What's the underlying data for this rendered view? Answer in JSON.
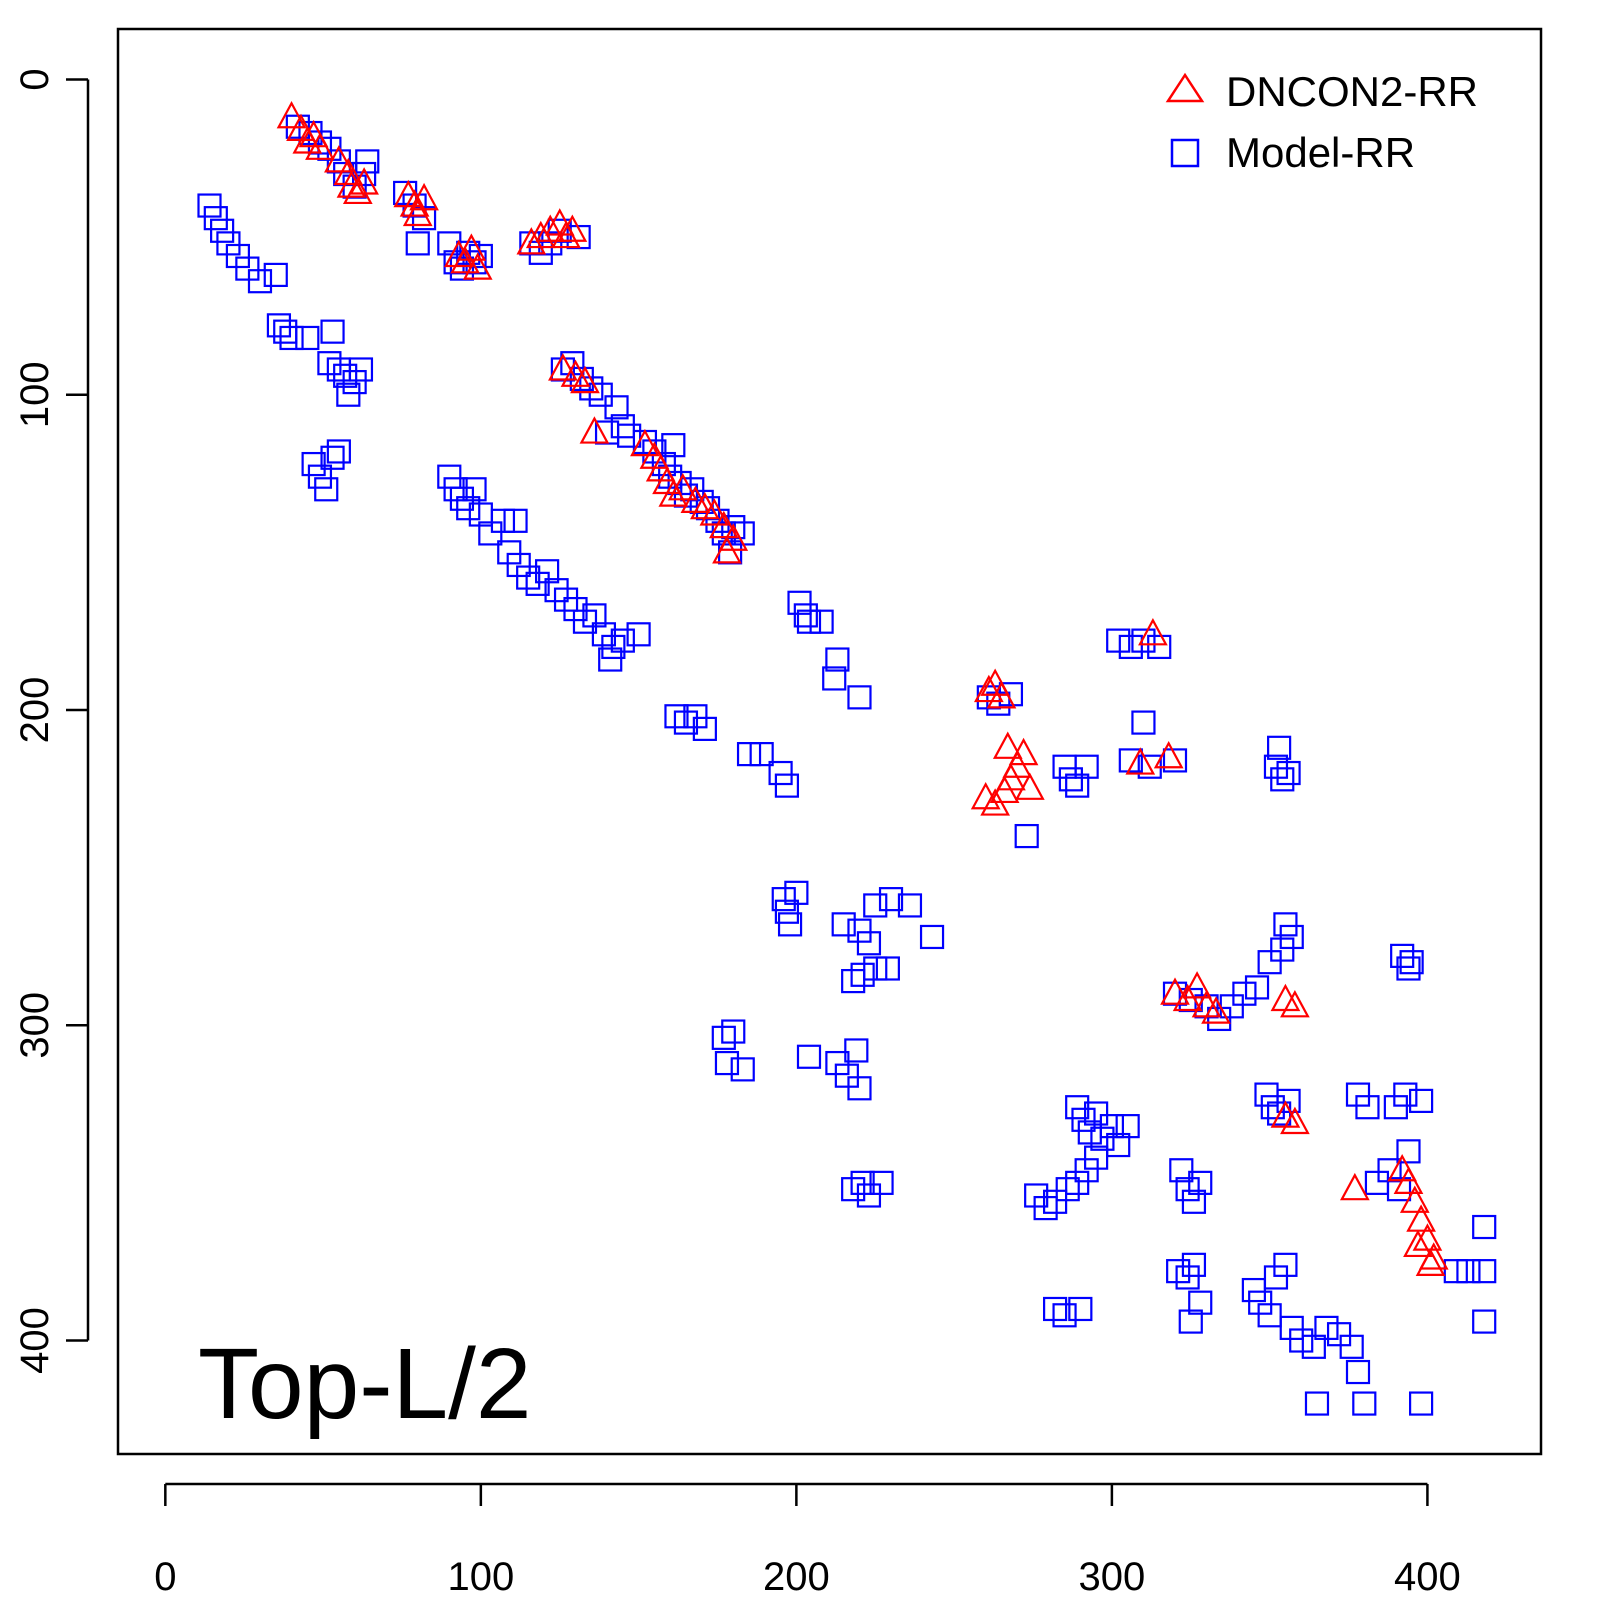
{
  "chart_data": {
    "type": "scatter",
    "panel_label": "Top-L/2",
    "xlim": [
      -15,
      436
    ],
    "ylim": [
      436,
      -16
    ],
    "y_axis_reversed": true,
    "x_ticks": [
      0,
      100,
      200,
      300,
      400
    ],
    "y_ticks": [
      0,
      100,
      200,
      300,
      400
    ],
    "legend_position": "top-right",
    "series": [
      {
        "name": "DNCON2-RR",
        "marker": "triangle-open",
        "color": "#ff0000",
        "points": [
          [
            40,
            12
          ],
          [
            43,
            16
          ],
          [
            45,
            20
          ],
          [
            47,
            18
          ],
          [
            49,
            22
          ],
          [
            55,
            26
          ],
          [
            58,
            30
          ],
          [
            59,
            34
          ],
          [
            61,
            36
          ],
          [
            63,
            33
          ],
          [
            77,
            37
          ],
          [
            79,
            40
          ],
          [
            80,
            43
          ],
          [
            82,
            38
          ],
          [
            93,
            56
          ],
          [
            95,
            58
          ],
          [
            97,
            54
          ],
          [
            99,
            60
          ],
          [
            116,
            52
          ],
          [
            119,
            50
          ],
          [
            122,
            48
          ],
          [
            125,
            46
          ],
          [
            127,
            50
          ],
          [
            129,
            48
          ],
          [
            126,
            92
          ],
          [
            130,
            94
          ],
          [
            133,
            96
          ],
          [
            136,
            112
          ],
          [
            152,
            116
          ],
          [
            155,
            120
          ],
          [
            157,
            124
          ],
          [
            159,
            128
          ],
          [
            161,
            132
          ],
          [
            164,
            130
          ],
          [
            168,
            134
          ],
          [
            171,
            136
          ],
          [
            174,
            138
          ],
          [
            177,
            142
          ],
          [
            178,
            150
          ],
          [
            180,
            146
          ],
          [
            261,
            194
          ],
          [
            263,
            192
          ],
          [
            265,
            196
          ],
          [
            260,
            228
          ],
          [
            263,
            230
          ],
          [
            266,
            226
          ],
          [
            268,
            222
          ],
          [
            270,
            218
          ],
          [
            272,
            214
          ],
          [
            274,
            225
          ],
          [
            267,
            212
          ],
          [
            309,
            217
          ],
          [
            318,
            215
          ],
          [
            313,
            176
          ],
          [
            320,
            290
          ],
          [
            324,
            292
          ],
          [
            327,
            288
          ],
          [
            330,
            294
          ],
          [
            333,
            296
          ],
          [
            355,
            292
          ],
          [
            358,
            294
          ],
          [
            355,
            329
          ],
          [
            358,
            331
          ],
          [
            377,
            352
          ],
          [
            392,
            346
          ],
          [
            394,
            350
          ],
          [
            396,
            356
          ],
          [
            398,
            362
          ],
          [
            400,
            368
          ],
          [
            402,
            374
          ],
          [
            397,
            370
          ],
          [
            401,
            376
          ]
        ]
      },
      {
        "name": "Model-RR",
        "marker": "square-open",
        "color": "#0000ff",
        "points": [
          [
            42,
            15
          ],
          [
            46,
            17
          ],
          [
            49,
            20
          ],
          [
            52,
            22
          ],
          [
            55,
            26
          ],
          [
            57,
            30
          ],
          [
            60,
            34
          ],
          [
            63,
            30
          ],
          [
            64,
            26
          ],
          [
            76,
            36
          ],
          [
            79,
            40
          ],
          [
            82,
            44
          ],
          [
            80,
            52
          ],
          [
            90,
            52
          ],
          [
            92,
            58
          ],
          [
            94,
            60
          ],
          [
            96,
            55
          ],
          [
            98,
            58
          ],
          [
            100,
            56
          ],
          [
            116,
            52
          ],
          [
            119,
            55
          ],
          [
            122,
            52
          ],
          [
            125,
            48
          ],
          [
            131,
            50
          ],
          [
            14,
            40
          ],
          [
            16,
            44
          ],
          [
            18,
            48
          ],
          [
            20,
            52
          ],
          [
            23,
            56
          ],
          [
            26,
            60
          ],
          [
            30,
            64
          ],
          [
            35,
            62
          ],
          [
            36,
            78
          ],
          [
            38,
            80
          ],
          [
            40,
            82
          ],
          [
            45,
            82
          ],
          [
            53,
            80
          ],
          [
            52,
            90
          ],
          [
            55,
            92
          ],
          [
            57,
            94
          ],
          [
            60,
            96
          ],
          [
            58,
            100
          ],
          [
            62,
            92
          ],
          [
            47,
            122
          ],
          [
            49,
            126
          ],
          [
            51,
            130
          ],
          [
            53,
            120
          ],
          [
            55,
            118
          ],
          [
            90,
            126
          ],
          [
            92,
            130
          ],
          [
            94,
            133
          ],
          [
            96,
            136
          ],
          [
            98,
            130
          ],
          [
            100,
            138
          ],
          [
            103,
            144
          ],
          [
            107,
            140
          ],
          [
            111,
            140
          ],
          [
            109,
            150
          ],
          [
            112,
            154
          ],
          [
            115,
            158
          ],
          [
            118,
            160
          ],
          [
            121,
            156
          ],
          [
            124,
            162
          ],
          [
            127,
            165
          ],
          [
            130,
            168
          ],
          [
            133,
            172
          ],
          [
            136,
            170
          ],
          [
            139,
            176
          ],
          [
            142,
            180
          ],
          [
            145,
            178
          ],
          [
            141,
            184
          ],
          [
            150,
            176
          ],
          [
            126,
            92
          ],
          [
            129,
            90
          ],
          [
            132,
            95
          ],
          [
            135,
            98
          ],
          [
            138,
            100
          ],
          [
            143,
            104
          ],
          [
            145,
            110
          ],
          [
            140,
            112
          ],
          [
            147,
            113
          ],
          [
            152,
            115
          ],
          [
            155,
            118
          ],
          [
            158,
            122
          ],
          [
            161,
            116
          ],
          [
            160,
            126
          ],
          [
            163,
            128
          ],
          [
            165,
            132
          ],
          [
            167,
            130
          ],
          [
            170,
            134
          ],
          [
            172,
            136
          ],
          [
            175,
            140
          ],
          [
            177,
            144
          ],
          [
            180,
            142
          ],
          [
            179,
            150
          ],
          [
            183,
            144
          ],
          [
            201,
            166
          ],
          [
            203,
            170
          ],
          [
            204,
            172
          ],
          [
            208,
            172
          ],
          [
            212,
            190
          ],
          [
            213,
            184
          ],
          [
            220,
            196
          ],
          [
            162,
            202
          ],
          [
            165,
            204
          ],
          [
            168,
            202
          ],
          [
            171,
            206
          ],
          [
            185,
            214
          ],
          [
            189,
            214
          ],
          [
            195,
            220
          ],
          [
            197,
            224
          ],
          [
            196,
            260
          ],
          [
            197,
            264
          ],
          [
            198,
            268
          ],
          [
            200,
            258
          ],
          [
            215,
            268
          ],
          [
            220,
            270
          ],
          [
            223,
            274
          ],
          [
            225,
            262
          ],
          [
            230,
            260
          ],
          [
            236,
            262
          ],
          [
            243,
            272
          ],
          [
            218,
            286
          ],
          [
            221,
            284
          ],
          [
            225,
            282
          ],
          [
            229,
            282
          ],
          [
            261,
            196
          ],
          [
            264,
            198
          ],
          [
            268,
            195
          ],
          [
            273,
            240
          ],
          [
            285,
            218
          ],
          [
            287,
            222
          ],
          [
            289,
            224
          ],
          [
            292,
            218
          ],
          [
            302,
            178
          ],
          [
            306,
            180
          ],
          [
            310,
            178
          ],
          [
            315,
            180
          ],
          [
            310,
            204
          ],
          [
            306,
            216
          ],
          [
            312,
            218
          ],
          [
            320,
            216
          ],
          [
            352,
            218
          ],
          [
            354,
            222
          ],
          [
            356,
            220
          ],
          [
            353,
            212
          ],
          [
            320,
            290
          ],
          [
            325,
            292
          ],
          [
            330,
            294
          ],
          [
            334,
            298
          ],
          [
            338,
            294
          ],
          [
            342,
            290
          ],
          [
            346,
            288
          ],
          [
            350,
            280
          ],
          [
            354,
            276
          ],
          [
            357,
            272
          ],
          [
            355,
            268
          ],
          [
            392,
            278
          ],
          [
            394,
            282
          ],
          [
            395,
            280
          ],
          [
            177,
            304
          ],
          [
            180,
            302
          ],
          [
            183,
            314
          ],
          [
            178,
            312
          ],
          [
            204,
            310
          ],
          [
            213,
            312
          ],
          [
            216,
            316
          ],
          [
            219,
            308
          ],
          [
            220,
            320
          ],
          [
            218,
            352
          ],
          [
            221,
            350
          ],
          [
            223,
            354
          ],
          [
            227,
            350
          ],
          [
            276,
            354
          ],
          [
            279,
            358
          ],
          [
            282,
            356
          ],
          [
            286,
            352
          ],
          [
            289,
            350
          ],
          [
            292,
            346
          ],
          [
            295,
            342
          ],
          [
            289,
            326
          ],
          [
            291,
            330
          ],
          [
            293,
            334
          ],
          [
            295,
            328
          ],
          [
            297,
            336
          ],
          [
            300,
            332
          ],
          [
            302,
            338
          ],
          [
            305,
            332
          ],
          [
            349,
            322
          ],
          [
            351,
            326
          ],
          [
            353,
            328
          ],
          [
            356,
            324
          ],
          [
            378,
            322
          ],
          [
            381,
            326
          ],
          [
            390,
            326
          ],
          [
            393,
            322
          ],
          [
            398,
            324
          ],
          [
            322,
            346
          ],
          [
            324,
            352
          ],
          [
            326,
            356
          ],
          [
            328,
            350
          ],
          [
            321,
            378
          ],
          [
            324,
            380
          ],
          [
            326,
            376
          ],
          [
            328,
            388
          ],
          [
            325,
            394
          ],
          [
            282,
            390
          ],
          [
            285,
            392
          ],
          [
            290,
            390
          ],
          [
            345,
            384
          ],
          [
            347,
            388
          ],
          [
            350,
            392
          ],
          [
            352,
            380
          ],
          [
            355,
            376
          ],
          [
            357,
            396
          ],
          [
            360,
            400
          ],
          [
            364,
            402
          ],
          [
            368,
            396
          ],
          [
            372,
            398
          ],
          [
            376,
            402
          ],
          [
            378,
            410
          ],
          [
            380,
            420
          ],
          [
            365,
            420
          ],
          [
            398,
            420
          ],
          [
            384,
            350
          ],
          [
            388,
            346
          ],
          [
            391,
            352
          ],
          [
            394,
            340
          ],
          [
            409,
            378
          ],
          [
            413,
            378
          ],
          [
            418,
            378
          ],
          [
            418,
            364
          ],
          [
            418,
            394
          ]
        ]
      }
    ]
  }
}
